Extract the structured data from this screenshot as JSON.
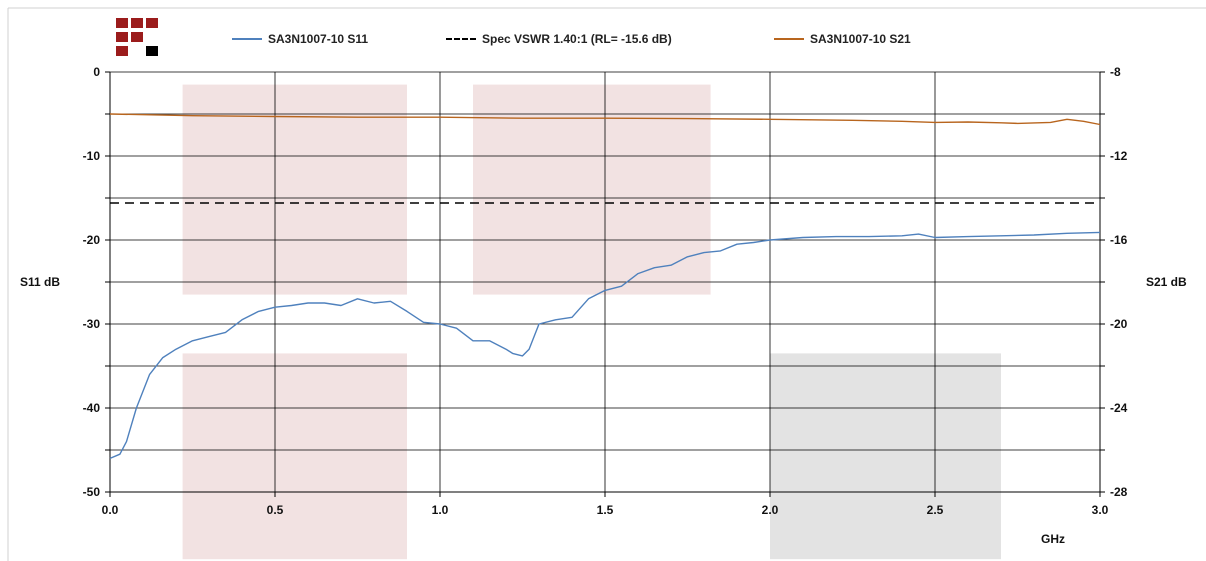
{
  "chart_data": {
    "type": "line",
    "xlabel": "GHz",
    "ylabel": "S11 dB",
    "y2label": "S21 dB",
    "xlim": [
      0.0,
      3.0
    ],
    "ylim": [
      -50,
      0
    ],
    "y2lim": [
      -28,
      -8
    ],
    "x_ticks": [
      "0.0",
      "0.5",
      "1.0",
      "1.5",
      "2.0",
      "2.5",
      "3.0"
    ],
    "y_ticks": [
      "0",
      "-10",
      "-20",
      "-30",
      "-40",
      "-50"
    ],
    "y2_ticks": [
      "-8",
      "-12",
      "-16",
      "-20",
      "-24",
      "-28"
    ],
    "grid": true,
    "legend_position": "top",
    "series": [
      {
        "name": "SA3N1007-10 S11",
        "axis": "left",
        "color": "#4f81bd",
        "x": [
          0.0,
          0.03,
          0.05,
          0.08,
          0.12,
          0.16,
          0.2,
          0.25,
          0.3,
          0.35,
          0.4,
          0.45,
          0.5,
          0.55,
          0.6,
          0.65,
          0.7,
          0.75,
          0.8,
          0.85,
          0.9,
          0.95,
          1.0,
          1.05,
          1.1,
          1.15,
          1.2,
          1.22,
          1.25,
          1.27,
          1.3,
          1.35,
          1.4,
          1.45,
          1.5,
          1.55,
          1.6,
          1.65,
          1.7,
          1.75,
          1.8,
          1.85,
          1.9,
          1.95,
          2.0,
          2.1,
          2.2,
          2.3,
          2.4,
          2.45,
          2.5,
          2.6,
          2.7,
          2.8,
          2.9,
          3.0
        ],
        "y": [
          -46.0,
          -45.5,
          -44.0,
          -40.0,
          -36.0,
          -34.0,
          -33.0,
          -32.0,
          -31.5,
          -31.0,
          -29.5,
          -28.5,
          -28.0,
          -27.8,
          -27.5,
          -27.5,
          -27.8,
          -27.0,
          -27.5,
          -27.3,
          -28.5,
          -29.8,
          -30.0,
          -30.5,
          -32.0,
          -32.0,
          -33.0,
          -33.5,
          -33.8,
          -33.0,
          -30.0,
          -29.5,
          -29.2,
          -27.0,
          -26.0,
          -25.5,
          -24.0,
          -23.3,
          -23.0,
          -22.0,
          -21.5,
          -21.3,
          -20.5,
          -20.3,
          -20.0,
          -19.7,
          -19.6,
          -19.6,
          -19.5,
          -19.3,
          -19.7,
          -19.6,
          -19.5,
          -19.4,
          -19.2,
          -19.1
        ]
      },
      {
        "name": "Spec VSWR 1.40:1 (RL= -15.6 dB)",
        "axis": "left",
        "color": "#000000",
        "dashed": true,
        "x": [
          0.0,
          3.0
        ],
        "y": [
          -15.6,
          -15.6
        ]
      },
      {
        "name": "SA3N1007-10 S21",
        "axis": "right",
        "color": "#b8651e",
        "x": [
          0.0,
          0.25,
          0.5,
          0.75,
          1.0,
          1.25,
          1.5,
          1.75,
          2.0,
          2.25,
          2.4,
          2.5,
          2.6,
          2.7,
          2.75,
          2.85,
          2.9,
          2.95,
          3.0
        ],
        "y": [
          -10.0,
          -10.08,
          -10.12,
          -10.15,
          -10.15,
          -10.2,
          -10.2,
          -10.22,
          -10.25,
          -10.3,
          -10.35,
          -10.4,
          -10.38,
          -10.42,
          -10.45,
          -10.4,
          -10.25,
          -10.35,
          -10.5
        ]
      }
    ]
  },
  "logo": {
    "name": "company-logo",
    "red": "#9b1c1c",
    "black": "#000000"
  },
  "shading": {
    "pink": "#f2e2e2",
    "gray": "#e3e3e3"
  }
}
